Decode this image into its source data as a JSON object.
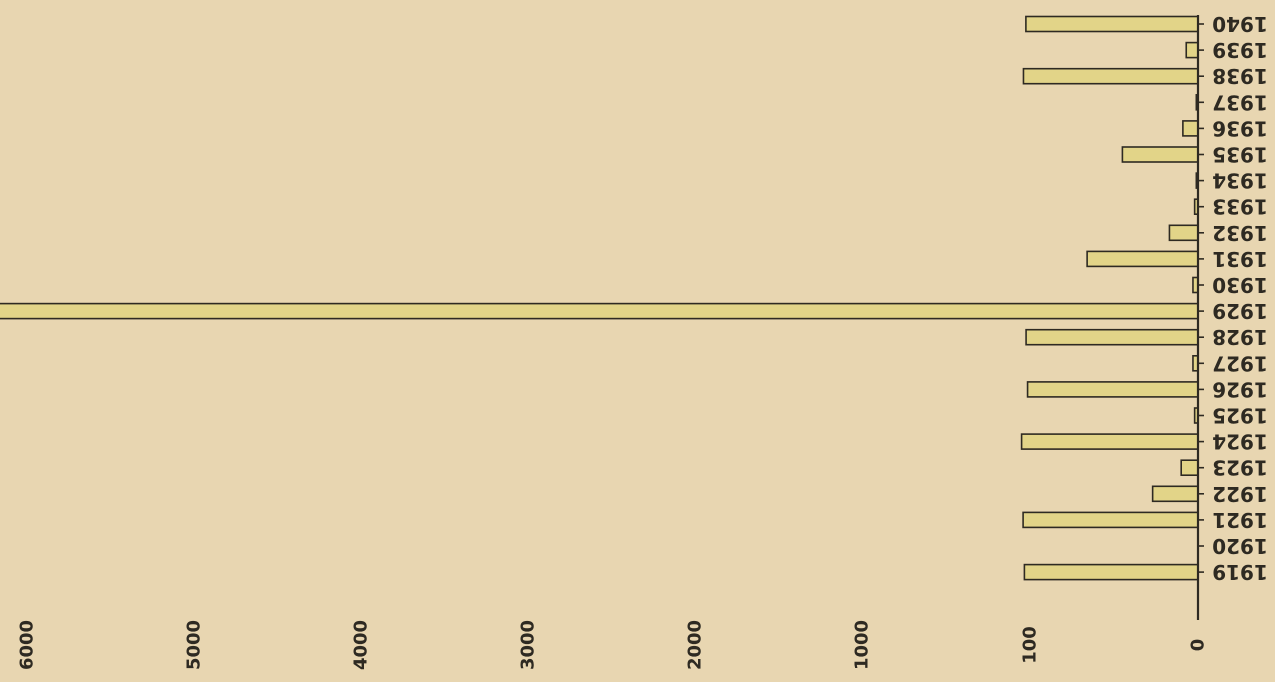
{
  "chart_data": {
    "type": "bar",
    "orientation": "horizontal",
    "title": "",
    "xlabel": "",
    "ylabel": "",
    "x_scale": "piecewise: 0-100 expanded, then linear per 1000",
    "x_ticks": [
      "0",
      "100",
      "1000",
      "2000",
      "3000",
      "4000",
      "5000",
      "6000"
    ],
    "categories": [
      "1919",
      "1920",
      "1921",
      "1922",
      "1923",
      "1924",
      "1925",
      "1926",
      "1927",
      "1928",
      "1929",
      "1930",
      "1931",
      "1932",
      "1933",
      "1934",
      "1935",
      "1936",
      "1937",
      "1938",
      "1939",
      "1940"
    ],
    "values": [
      130,
      0,
      137,
      27,
      10,
      145,
      2,
      113,
      3,
      121,
      7100,
      3,
      66,
      17,
      2,
      1,
      45,
      9,
      1,
      135,
      7,
      122
    ],
    "colors": {
      "background": "#e8d6b1",
      "bar_fill": "#e2d488",
      "ink": "#2e2a22"
    },
    "grid": false,
    "legend": "none"
  }
}
